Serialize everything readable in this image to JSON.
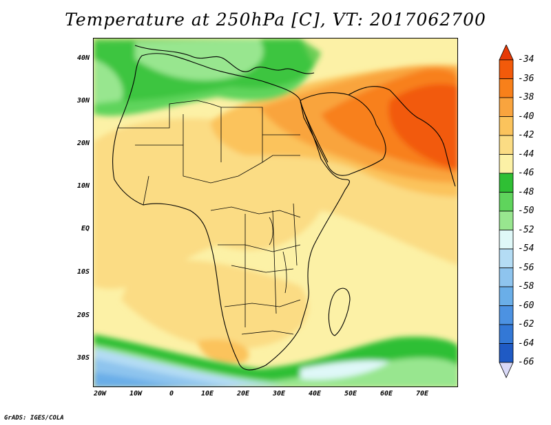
{
  "title": "Temperature at 250hPa [C], VT: 2017062700",
  "credit": "GrADS: IGES/COLA",
  "map": {
    "lat_ticks": [
      "40N",
      "30N",
      "20N",
      "10N",
      "EQ",
      "10S",
      "20S",
      "30S"
    ],
    "lon_ticks": [
      "20W",
      "10W",
      "0",
      "10E",
      "20E",
      "30E",
      "40E",
      "50E",
      "60E",
      "70E"
    ],
    "extent": {
      "lon": [
        -22,
        80
      ],
      "lat": [
        -36,
        45
      ]
    }
  },
  "colorbar": {
    "labels": [
      "-34",
      "-36",
      "-38",
      "-40",
      "-42",
      "-44",
      "-46",
      "-48",
      "-50",
      "-52",
      "-54",
      "-56",
      "-58",
      "-60",
      "-62",
      "-64",
      "-66"
    ],
    "colors": [
      "#f25a0a",
      "#f8801a",
      "#f9a43e",
      "#fbc35c",
      "#fbdc84",
      "#fcf1a6",
      "#2fbf34",
      "#5fd45c",
      "#98e68f",
      "#dff8f8",
      "#b4dcf4",
      "#8ec4ee",
      "#6aaee8",
      "#4c92e2",
      "#3378d6",
      "#1f5ac4",
      "#0a1f8c"
    ],
    "top_color": "#e63a06",
    "bottom_color": "#d9d9f7"
  }
}
